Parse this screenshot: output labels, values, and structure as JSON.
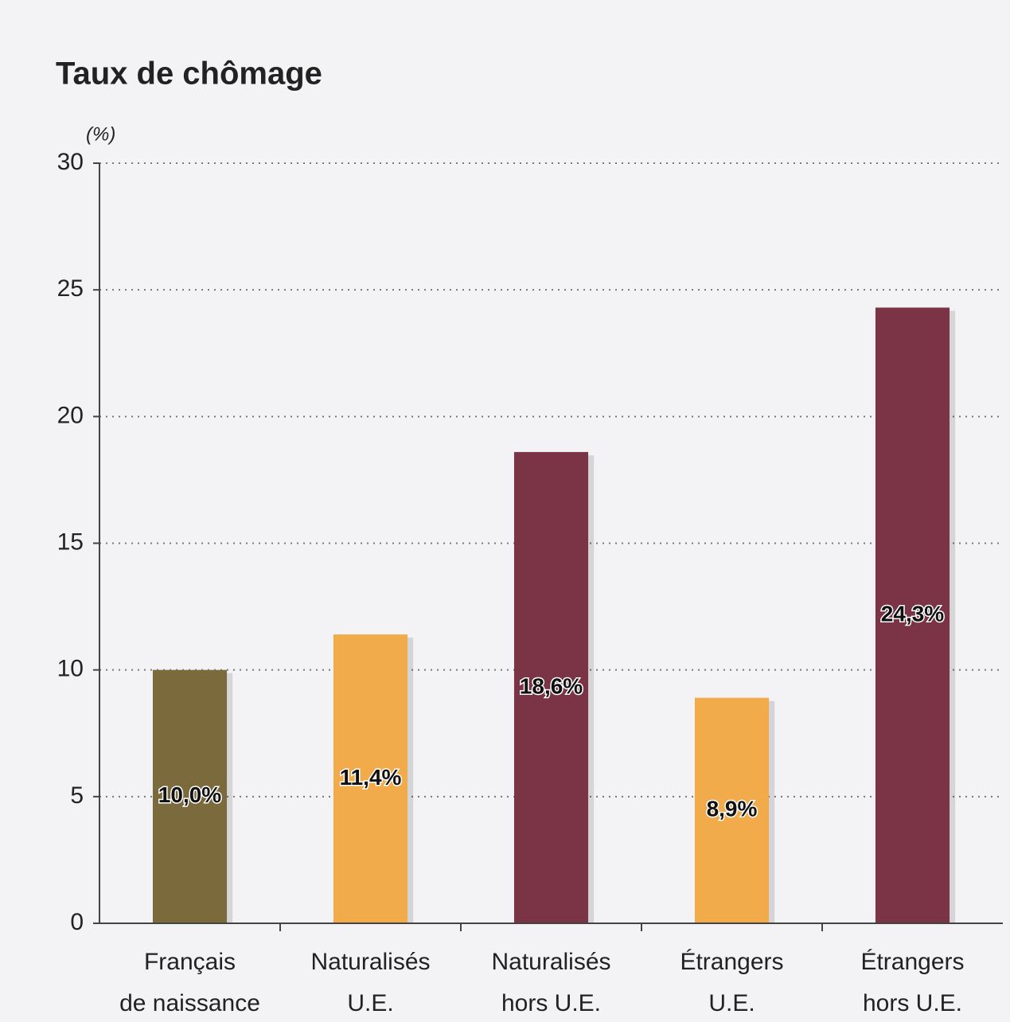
{
  "chart_data": {
    "type": "bar",
    "title": "Taux de chômage",
    "y_unit": "(%)",
    "categories": [
      [
        "Français",
        "de naissance"
      ],
      [
        "Naturalisés",
        "U.E."
      ],
      [
        "Naturalisés",
        "hors U.E."
      ],
      [
        "Étrangers",
        "U.E."
      ],
      [
        "Étrangers",
        "hors U.E."
      ]
    ],
    "values": [
      10.0,
      11.4,
      18.6,
      8.9,
      24.3
    ],
    "value_labels": [
      "10,0%",
      "11,4%",
      "18,6%",
      "8,9%",
      "24,3%"
    ],
    "colors": [
      "#7b6a3c",
      "#f1ab4b",
      "#7b3446",
      "#f1ab4b",
      "#7b3446"
    ],
    "ylim": [
      0,
      30
    ],
    "yticks": [
      0,
      5,
      10,
      15,
      20,
      25,
      30
    ],
    "grid": true
  }
}
